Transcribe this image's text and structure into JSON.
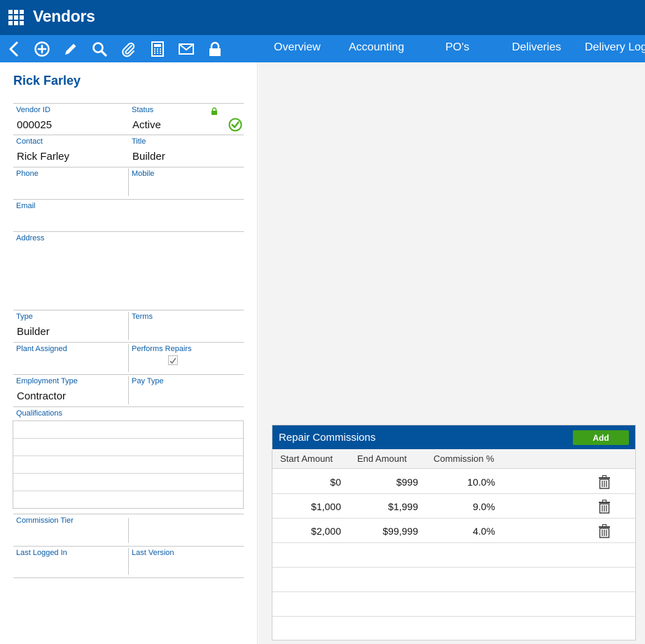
{
  "app": {
    "title": "Vendors"
  },
  "toolbar": {
    "icons": [
      "back-icon",
      "add-icon",
      "edit-icon",
      "search-icon",
      "attach-icon",
      "calculator-icon",
      "email-icon",
      "lock-icon"
    ],
    "tabs": [
      "Overview",
      "Accounting",
      "PO's",
      "Deliveries",
      "Delivery Log"
    ]
  },
  "vendor": {
    "name": "Rick Farley",
    "vendor_id_label": "Vendor ID",
    "vendor_id": "000025",
    "status_label": "Status",
    "status": "Active",
    "contact_label": "Contact",
    "contact": "Rick Farley",
    "title_label": "Title",
    "title": "Builder",
    "phone_label": "Phone",
    "phone": "",
    "mobile_label": "Mobile",
    "mobile": "",
    "email_label": "Email",
    "email": "",
    "address_label": "Address",
    "address": "",
    "type_label": "Type",
    "type": "Builder",
    "terms_label": "Terms",
    "terms": "",
    "plant_label": "Plant Assigned",
    "plant": "",
    "repairs_label": "Performs Repairs",
    "performs_repairs": true,
    "employment_label": "Employment Type",
    "employment": "Contractor",
    "pay_label": "Pay Type",
    "pay": "",
    "qualifications_label": "Qualifications",
    "commission_tier_label": "Commission Tier",
    "commission_tier": "",
    "last_logged_label": "Last Logged In",
    "last_logged": "",
    "last_version_label": "Last Version",
    "last_version": ""
  },
  "commissions": {
    "title": "Repair Commissions",
    "add_label": "Add",
    "columns": [
      "Start Amount",
      "End Amount",
      "Commission %"
    ],
    "rows": [
      {
        "start": "$0",
        "end": "$999",
        "pct": "10.0%"
      },
      {
        "start": "$1,000",
        "end": "$1,999",
        "pct": "9.0%"
      },
      {
        "start": "$2,000",
        "end": "$99,999",
        "pct": "4.0%"
      }
    ]
  },
  "colors": {
    "header": "#02529c",
    "toolbar": "#1d82e0",
    "accent": "#0b5ea8",
    "add": "#3e9e19",
    "status_ok": "#4caf1a"
  }
}
